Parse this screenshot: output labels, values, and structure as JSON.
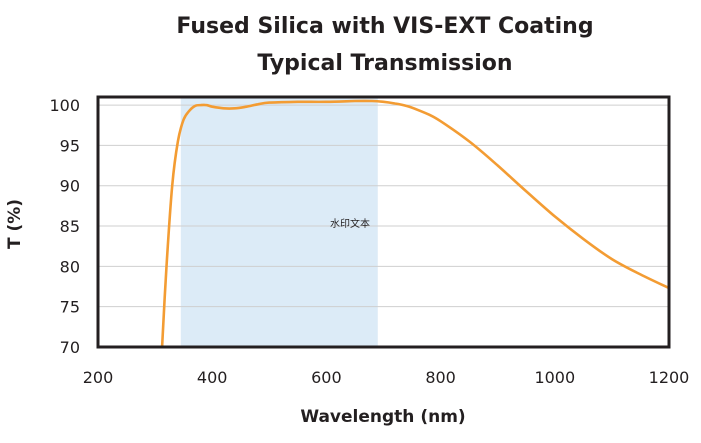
{
  "chart_data": {
    "type": "line",
    "title": "Fused Silica with VIS-EXT Coating",
    "subtitle": "Typical Transmission",
    "xlabel": "Wavelength (nm)",
    "ylabel": "T (%)",
    "xlim": [
      200,
      1200
    ],
    "ylim": [
      70,
      101
    ],
    "xticks": [
      200,
      400,
      600,
      800,
      1000,
      1200
    ],
    "yticks": [
      70,
      75,
      80,
      85,
      90,
      95,
      100
    ],
    "grid": "horizontal",
    "shaded_band": {
      "x_start": 345,
      "x_end": 690,
      "color": "#dcebf7"
    },
    "annotation": "水印文本",
    "series": [
      {
        "color": "#f39c33",
        "x": [
          312,
          320,
          330,
          340,
          350,
          360,
          370,
          380,
          390,
          400,
          420,
          440,
          460,
          480,
          500,
          550,
          600,
          650,
          680,
          700,
          720,
          740,
          760,
          780,
          800,
          850,
          900,
          950,
          1000,
          1050,
          1100,
          1150,
          1200
        ],
        "y": [
          69.8,
          80,
          90,
          95.5,
          98.2,
          99.3,
          99.9,
          100.0,
          100.0,
          99.8,
          99.6,
          99.6,
          99.8,
          100.1,
          100.3,
          100.4,
          100.4,
          100.5,
          100.5,
          100.4,
          100.2,
          99.9,
          99.4,
          98.8,
          98.0,
          95.5,
          92.5,
          89.3,
          86.2,
          83.4,
          80.9,
          79.0,
          77.3
        ]
      }
    ]
  }
}
